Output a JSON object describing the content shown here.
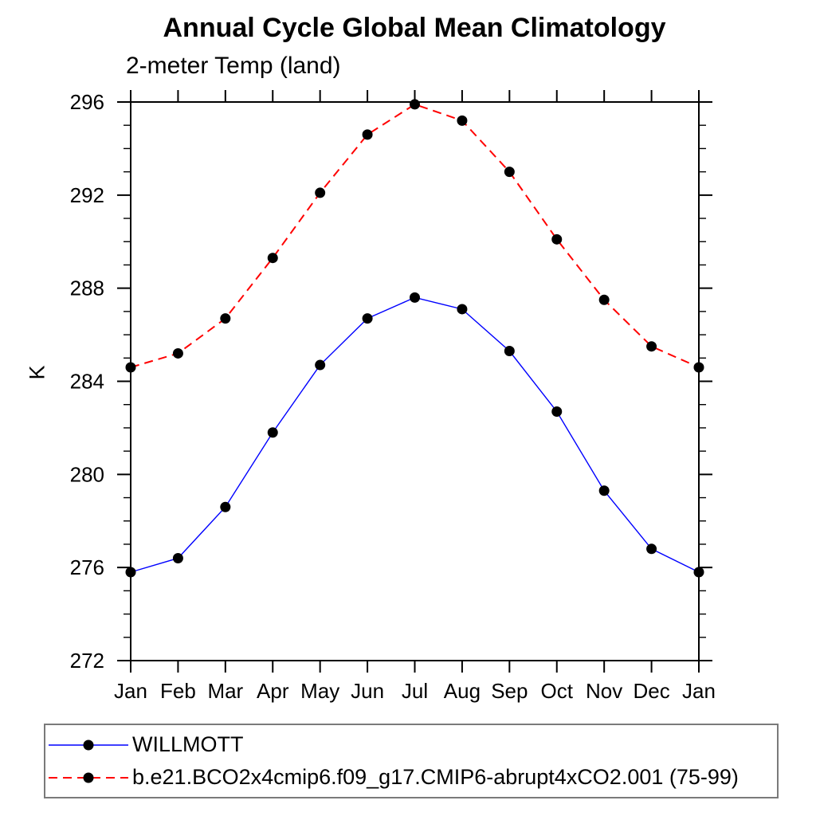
{
  "title": "Annual Cycle Global Mean Climatology",
  "subtitle": "2-meter Temp (land)",
  "y_axis_title": "K",
  "legend": {
    "items": [
      {
        "label": "WILLMOTT",
        "color": "#0000ff",
        "line_style": "solid"
      },
      {
        "label": "b.e21.BCO2x4cmip6.f09_g17.CMIP6-abrupt4xCO2.001 (75-99)",
        "color": "#ff0000",
        "line_style": "dashed"
      }
    ]
  },
  "chart_data": {
    "type": "line",
    "title": "Annual Cycle Global Mean Climatology",
    "subtitle": "2-meter Temp (land)",
    "xlabel": "",
    "ylabel": "K",
    "categories": [
      "Jan",
      "Feb",
      "Mar",
      "Apr",
      "May",
      "Jun",
      "Jul",
      "Aug",
      "Sep",
      "Oct",
      "Nov",
      "Dec",
      "Jan"
    ],
    "ylim": [
      272,
      296
    ],
    "ytick_major": [
      272,
      276,
      280,
      284,
      288,
      292,
      296
    ],
    "ytick_minor_step": 1,
    "grid": false,
    "legend_position": "bottom-left-box",
    "marker": {
      "shape": "circle",
      "color": "#000000",
      "radius": 6.5
    },
    "series": [
      {
        "name": "WILLMOTT",
        "color": "#0000ff",
        "line": "solid",
        "values": [
          275.8,
          276.4,
          278.6,
          281.8,
          284.7,
          286.7,
          287.6,
          287.1,
          285.3,
          282.7,
          279.3,
          276.8,
          275.8
        ]
      },
      {
        "name": "b.e21.BCO2x4cmip6.f09_g17.CMIP6-abrupt4xCO2.001 (75-99)",
        "color": "#ff0000",
        "line": "dashed",
        "values": [
          284.6,
          285.2,
          286.7,
          289.3,
          292.1,
          294.6,
          295.9,
          295.2,
          293.0,
          290.1,
          287.5,
          285.5,
          284.6
        ]
      }
    ]
  }
}
